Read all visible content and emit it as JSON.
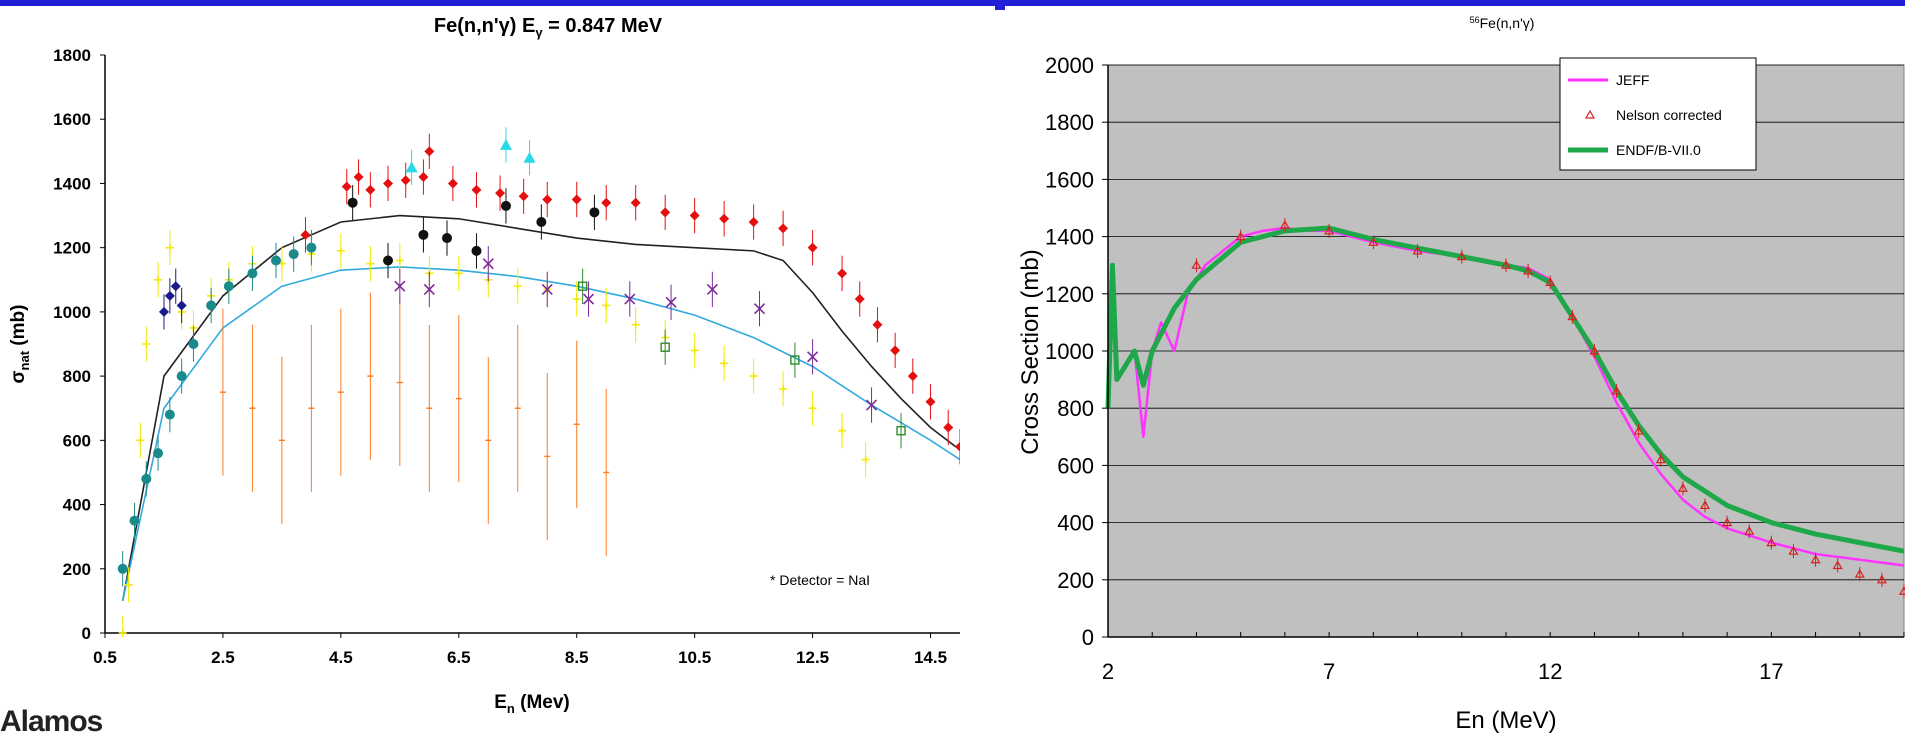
{
  "logo_text": "Alamos",
  "chart_data": [
    {
      "type": "scatter",
      "title_main": "Fe(n,n'γ) E",
      "title_sub": "γ",
      "title_rest": " = 0.847 MeV",
      "xlabel_main": "E",
      "xlabel_sub": "n",
      "xlabel_rest": " (Mev)",
      "ylabel_main": "σ",
      "ylabel_sub": "nat",
      "ylabel_rest": " (mb)",
      "xlim": [
        0.5,
        15.0
      ],
      "ylim": [
        0,
        1800
      ],
      "xticks": [
        "0.5",
        "2.5",
        "4.5",
        "6.5",
        "8.5",
        "10.5",
        "12.5",
        "14.5"
      ],
      "xtick_values": [
        0.5,
        2.5,
        4.5,
        6.5,
        8.5,
        10.5,
        12.5,
        14.5
      ],
      "yticks": [
        "0",
        "200",
        "400",
        "600",
        "800",
        "1000",
        "1200",
        "1400",
        "1600",
        "1800"
      ],
      "ytick_values": [
        0,
        200,
        400,
        600,
        800,
        1000,
        1200,
        1400,
        1600,
        1800
      ],
      "annotation": "* Detector = NaI",
      "grid": false,
      "series": [
        {
          "color": "#e41010",
          "marker": "diamond",
          "x": [
            3.9,
            4.6,
            4.8,
            5.0,
            5.3,
            5.6,
            5.9,
            6.0,
            6.4,
            6.8,
            7.2,
            7.6,
            8.0,
            8.5,
            9.0,
            9.5,
            10.0,
            10.5,
            11.0,
            11.5,
            12.0,
            12.5,
            13.0,
            13.3,
            13.6,
            13.9,
            14.2,
            14.5,
            14.8,
            15.0
          ],
          "y": [
            1240,
            1390,
            1420,
            1380,
            1400,
            1410,
            1420,
            1500,
            1400,
            1380,
            1370,
            1360,
            1350,
            1350,
            1340,
            1340,
            1310,
            1300,
            1290,
            1280,
            1260,
            1200,
            1120,
            1040,
            960,
            880,
            800,
            720,
            640,
            580
          ]
        },
        {
          "color": "#f2ea00",
          "marker": "plus",
          "x": [
            0.8,
            0.9,
            1.0,
            1.1,
            1.2,
            1.4,
            1.6,
            1.8,
            2.0,
            2.3,
            2.6,
            3.0,
            3.5,
            4.0,
            4.5,
            5.0,
            5.5,
            6.0,
            6.5,
            7.0,
            7.5,
            8.0,
            8.5,
            9.0,
            9.5,
            10.0,
            10.5,
            11.0,
            11.5,
            12.0,
            12.5,
            13.0,
            13.4
          ],
          "y": [
            0,
            150,
            350,
            600,
            900,
            1100,
            1200,
            1000,
            950,
            1050,
            1100,
            1150,
            1150,
            1180,
            1190,
            1150,
            1160,
            1120,
            1120,
            1100,
            1080,
            1070,
            1040,
            1020,
            960,
            920,
            880,
            840,
            800,
            760,
            700,
            630,
            540
          ]
        },
        {
          "color": "#ff7a1f",
          "marker": "errorbar",
          "x": [
            2.5,
            3.0,
            3.5,
            4.0,
            4.5,
            5.0,
            5.5,
            6.0,
            6.5,
            7.0,
            7.5,
            8.0,
            8.5,
            9.0
          ],
          "y": [
            750,
            700,
            600,
            700,
            750,
            800,
            780,
            700,
            730,
            600,
            700,
            550,
            650,
            500
          ]
        },
        {
          "color": "#111111",
          "marker": "circle",
          "x": [
            4.7,
            5.3,
            5.9,
            6.3,
            6.8,
            7.3,
            7.9,
            8.8
          ],
          "y": [
            1340,
            1160,
            1240,
            1230,
            1190,
            1330,
            1280,
            1310
          ]
        },
        {
          "color": "#1b8a8a",
          "marker": "circle",
          "x": [
            0.8,
            1.0,
            1.2,
            1.4,
            1.6,
            1.8,
            2.0,
            2.3,
            2.6,
            3.0,
            3.4,
            3.7,
            4.0
          ],
          "y": [
            200,
            350,
            480,
            560,
            680,
            800,
            900,
            1020,
            1080,
            1120,
            1160,
            1180,
            1200
          ]
        },
        {
          "color": "#2ad9e8",
          "marker": "triangle",
          "x": [
            5.7,
            7.3,
            7.7
          ],
          "y": [
            1450,
            1520,
            1480
          ]
        },
        {
          "color": "#7d2b99",
          "marker": "x",
          "x": [
            5.5,
            6.0,
            7.0,
            8.0,
            8.7,
            9.4,
            10.1,
            10.8,
            11.6,
            12.5,
            13.5
          ],
          "y": [
            1080,
            1070,
            1150,
            1070,
            1040,
            1040,
            1030,
            1070,
            1010,
            860,
            710
          ]
        },
        {
          "color": "#1a1a8c",
          "marker": "diamond",
          "x": [
            1.5,
            1.6,
            1.7,
            1.8
          ],
          "y": [
            1000,
            1050,
            1080,
            1020
          ]
        },
        {
          "color": "#2e8b2e",
          "marker": "square-open",
          "x": [
            8.6,
            10.0,
            12.2,
            14.0
          ],
          "y": [
            1080,
            890,
            850,
            630
          ]
        }
      ],
      "curves": [
        {
          "color": "#222222",
          "x": [
            0.8,
            1.5,
            2.5,
            3.5,
            4.5,
            5.5,
            6.5,
            7.5,
            8.5,
            9.5,
            10.5,
            11.5,
            12.0,
            12.5,
            13.0,
            13.5,
            14.0,
            14.5,
            15.0
          ],
          "y": [
            100,
            800,
            1050,
            1200,
            1280,
            1300,
            1290,
            1260,
            1230,
            1210,
            1200,
            1190,
            1160,
            1060,
            940,
            830,
            730,
            640,
            570
          ]
        },
        {
          "color": "#33aadd",
          "x": [
            0.8,
            1.5,
            2.5,
            3.5,
            4.5,
            5.5,
            6.5,
            7.5,
            8.5,
            9.5,
            10.5,
            11.5,
            12.5,
            13.5,
            14.5,
            15.0
          ],
          "y": [
            100,
            700,
            950,
            1080,
            1130,
            1140,
            1130,
            1110,
            1080,
            1040,
            990,
            920,
            830,
            710,
            600,
            540
          ]
        }
      ]
    },
    {
      "type": "line",
      "title_sup": "56",
      "title_rest": "Fe(n,n'γ)",
      "xlabel": "En (MeV)",
      "ylabel": "Cross Section (mb)",
      "xlim": [
        2,
        20
      ],
      "ylim": [
        0,
        2000
      ],
      "xticks": [
        "2",
        "7",
        "12",
        "17"
      ],
      "xtick_values": [
        2,
        7,
        12,
        17
      ],
      "yticks": [
        "0",
        "200",
        "400",
        "600",
        "800",
        "1000",
        "1200",
        "1400",
        "1600",
        "1800",
        "2000"
      ],
      "ytick_values": [
        0,
        200,
        400,
        600,
        800,
        1000,
        1200,
        1400,
        1600,
        1800,
        2000
      ],
      "grid": true,
      "legend": "top-right",
      "series": [
        {
          "name": "JEFF",
          "color": "#ff33ff",
          "x": [
            2.6,
            2.8,
            3.0,
            3.2,
            3.5,
            3.8,
            4.2,
            4.6,
            5.0,
            5.5,
            6.0,
            6.5,
            7.0,
            8.0,
            9.0,
            10.0,
            11.0,
            11.5,
            12.0,
            12.5,
            13.0,
            13.5,
            14.0,
            14.5,
            15.0,
            15.5,
            16.0,
            17.0,
            18.0,
            19.0,
            20.0
          ],
          "y": [
            1000,
            700,
            1000,
            1100,
            1000,
            1200,
            1300,
            1350,
            1400,
            1420,
            1430,
            1420,
            1420,
            1380,
            1350,
            1330,
            1300,
            1290,
            1250,
            1120,
            980,
            820,
            680,
            570,
            480,
            420,
            380,
            330,
            290,
            270,
            250
          ]
        },
        {
          "name": "Nelson corrected",
          "color": "#d62020",
          "x": [
            4.0,
            5.0,
            6.0,
            7.0,
            8.0,
            9.0,
            10.0,
            11.0,
            11.5,
            12.0,
            12.5,
            13.0,
            13.5,
            14.0,
            14.5,
            15.0,
            15.5,
            16.0,
            16.5,
            17.0,
            17.5,
            18.0,
            18.5,
            19.0,
            19.5,
            20.0
          ],
          "y": [
            1300,
            1400,
            1440,
            1420,
            1380,
            1350,
            1330,
            1300,
            1280,
            1240,
            1120,
            1000,
            860,
            720,
            620,
            520,
            460,
            400,
            370,
            330,
            300,
            270,
            250,
            220,
            200,
            160
          ]
        },
        {
          "name": "ENDF/B-VII.0",
          "color": "#1fa84a",
          "x": [
            2.0,
            2.1,
            2.2,
            2.4,
            2.6,
            2.8,
            3.0,
            3.5,
            4.0,
            5.0,
            6.0,
            7.0,
            8.0,
            9.0,
            10.0,
            11.0,
            11.5,
            12.0,
            12.5,
            13.0,
            13.5,
            14.0,
            14.5,
            15.0,
            16.0,
            17.0,
            18.0,
            19.0,
            20.0
          ],
          "y": [
            800,
            1300,
            900,
            950,
            1000,
            880,
            1000,
            1150,
            1250,
            1380,
            1420,
            1430,
            1390,
            1360,
            1330,
            1300,
            1280,
            1240,
            1120,
            1000,
            860,
            740,
            640,
            560,
            460,
            400,
            360,
            330,
            300
          ]
        }
      ]
    }
  ]
}
